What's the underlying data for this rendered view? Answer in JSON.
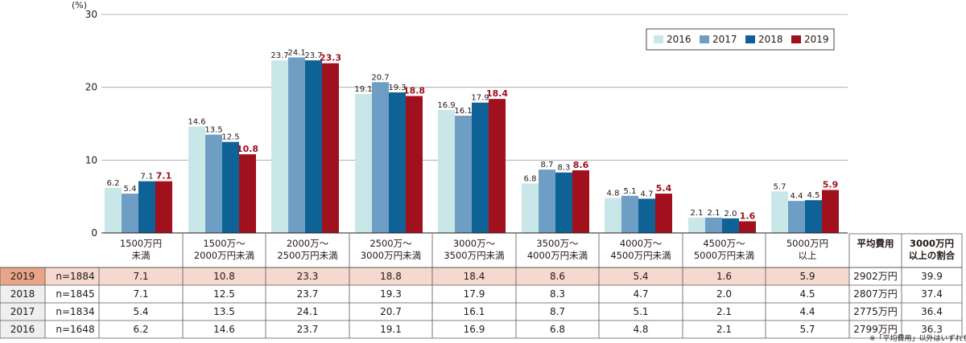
{
  "chart_data": {
    "type": "bar",
    "title": "",
    "ylabel": "(%)",
    "ylim": [
      0,
      30
    ],
    "yticks": [
      0,
      10,
      20,
      30
    ],
    "categories": [
      [
        "1500万円",
        "未満"
      ],
      [
        "1500万～",
        "2000万円未満"
      ],
      [
        "2000万～",
        "2500万円未満"
      ],
      [
        "2500万～",
        "3000万円未満"
      ],
      [
        "3000万～",
        "3500万円未満"
      ],
      [
        "3500万～",
        "4000万円未満"
      ],
      [
        "4000万～",
        "4500万円未満"
      ],
      [
        "4500万～",
        "5000万円未満"
      ],
      [
        "5000万円",
        "以上"
      ]
    ],
    "extra_columns": [
      [
        "平均費用"
      ],
      [
        "3000万円",
        "以上の割合"
      ]
    ],
    "series": [
      {
        "name": "2016",
        "color": "#c9e7e8",
        "label_color": "#231815",
        "values": [
          6.2,
          14.6,
          23.7,
          19.1,
          16.9,
          6.8,
          4.8,
          2.1,
          5.7
        ]
      },
      {
        "name": "2017",
        "color": "#6f9ec5",
        "label_color": "#231815",
        "values": [
          5.4,
          13.5,
          24.1,
          20.7,
          16.1,
          8.7,
          5.1,
          2.1,
          4.4
        ]
      },
      {
        "name": "2018",
        "color": "#0f6295",
        "label_color": "#231815",
        "values": [
          7.1,
          12.5,
          23.7,
          19.3,
          17.9,
          8.3,
          4.7,
          2.0,
          4.5
        ]
      },
      {
        "name": "2019",
        "color": "#a1101d",
        "label_color": "#a1101d",
        "values": [
          7.1,
          10.8,
          23.3,
          18.8,
          18.4,
          8.6,
          5.4,
          1.6,
          5.9
        ]
      }
    ],
    "legend": "top-right",
    "table": [
      {
        "year": "2019",
        "n": "n=1884",
        "highlight": true,
        "values": [
          "7.1",
          "10.8",
          "23.3",
          "18.8",
          "18.4",
          "8.6",
          "5.4",
          "1.6",
          "5.9"
        ],
        "avg": "2902万円",
        "ratio": "39.9"
      },
      {
        "year": "2018",
        "n": "n=1845",
        "highlight": false,
        "values": [
          "7.1",
          "12.5",
          "23.7",
          "19.3",
          "17.9",
          "8.3",
          "4.7",
          "2.0",
          "4.5"
        ],
        "avg": "2807万円",
        "ratio": "37.4"
      },
      {
        "year": "2017",
        "n": "n=1834",
        "highlight": false,
        "values": [
          "5.4",
          "13.5",
          "24.1",
          "20.7",
          "16.1",
          "8.7",
          "5.1",
          "2.1",
          "4.4"
        ],
        "avg": "2775万円",
        "ratio": "36.4"
      },
      {
        "year": "2016",
        "n": "n=1648",
        "highlight": false,
        "values": [
          "6.2",
          "14.6",
          "23.7",
          "19.1",
          "16.9",
          "6.8",
          "4.8",
          "2.1",
          "5.7"
        ],
        "avg": "2799万円",
        "ratio": "36.3"
      }
    ],
    "note": "※「平均費用」以外はいずれも%"
  }
}
